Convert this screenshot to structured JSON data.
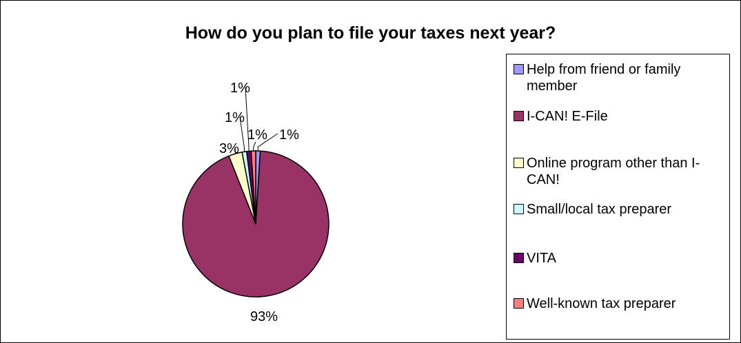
{
  "chart_data": {
    "type": "pie",
    "title": "How do you plan to file your taxes next year?",
    "legend_position": "right",
    "slices": [
      {
        "label": "Help from friend or family member",
        "value": 1,
        "data_label": "1%",
        "color": "#9999ff"
      },
      {
        "label": "I-CAN! E-File",
        "value": 93,
        "data_label": "93%",
        "color": "#993366"
      },
      {
        "label": "Online program other than I-CAN!",
        "value": 3,
        "data_label": "3%",
        "color": "#ffffcc"
      },
      {
        "label": "Small/local tax preparer",
        "value": 1,
        "data_label": "1%",
        "color": "#ccffff"
      },
      {
        "label": "VITA",
        "value": 1,
        "data_label": "1%",
        "color": "#660066"
      },
      {
        "label": "Well-known tax preparer",
        "value": 1,
        "data_label": "1%",
        "color": "#ff8080"
      }
    ]
  }
}
